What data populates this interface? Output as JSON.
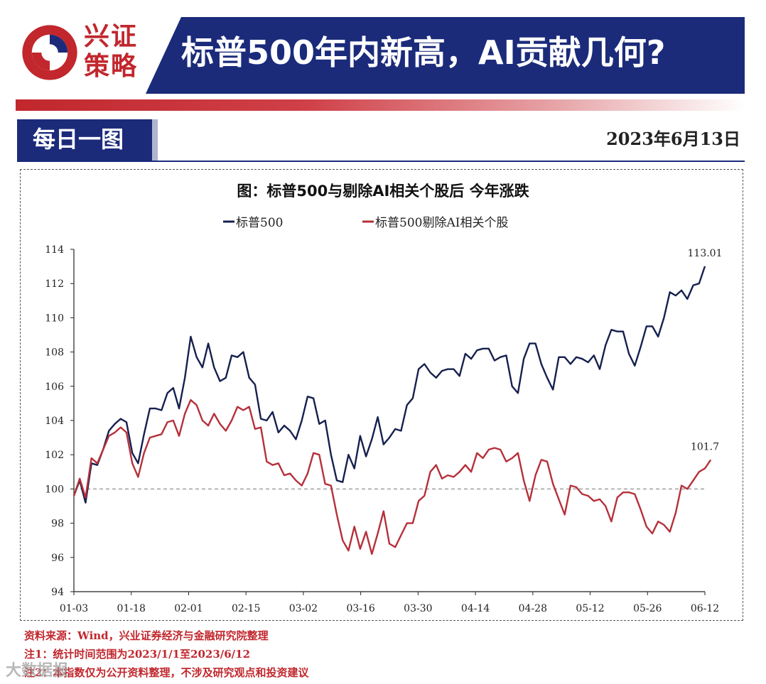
{
  "header": {
    "brand": "兴证策略",
    "brand_line1": "兴证",
    "brand_line2": "策略",
    "title": "标普500年内新高，AI贡献几何?",
    "section": "每日一图",
    "date": "2023年6月13日"
  },
  "colors": {
    "brand_red": "#c1272d",
    "navy": "#1b2b7a",
    "series_sp500": "#16204f",
    "series_ex_ai": "#b5303a"
  },
  "footnotes": [
    "资料来源：Wind，兴业证券经济与金融研究院整理",
    "注1：统计时间范围为2023/1/1至2023/6/12",
    "注2：本指数仅为公开资料整理，不涉及研究观点和投资建议"
  ],
  "watermark": "大数据报",
  "chart_data": {
    "type": "line",
    "title": "图：标普500与剔除AI相关个股后 今年涨跌",
    "xlabel": "",
    "ylabel": "",
    "ylim": [
      94,
      114
    ],
    "yticks": [
      94,
      96,
      98,
      100,
      102,
      104,
      106,
      108,
      110,
      112,
      114
    ],
    "xtick_labels": [
      "01-03",
      "01-18",
      "02-01",
      "02-15",
      "03-02",
      "03-16",
      "03-30",
      "04-14",
      "04-28",
      "05-12",
      "05-26",
      "06-12"
    ],
    "reference_line": 100,
    "legend_position": "top",
    "grid": false,
    "series": [
      {
        "name": "标普500",
        "end_label": "113.01",
        "values": [
          99.6,
          100.5,
          99.2,
          101.5,
          101.4,
          102.3,
          103.4,
          103.8,
          104.1,
          103.9,
          102.1,
          101.5,
          103.2,
          104.7,
          104.7,
          104.6,
          105.6,
          105.9,
          104.7,
          106.5,
          108.9,
          107.7,
          107.1,
          108.5,
          107.1,
          106.3,
          106.5,
          107.8,
          107.7,
          108.0,
          106.5,
          106.1,
          104.1,
          104.0,
          104.5,
          103.3,
          103.7,
          103.4,
          102.9,
          104.0,
          105.4,
          105.3,
          103.8,
          104.0,
          102.0,
          100.5,
          100.4,
          102.0,
          101.2,
          103.1,
          101.9,
          102.9,
          104.2,
          102.6,
          103.0,
          103.5,
          103.4,
          104.9,
          105.3,
          107.0,
          107.3,
          106.8,
          106.5,
          106.9,
          107.0,
          107.0,
          106.6,
          107.9,
          107.6,
          108.1,
          108.2,
          108.2,
          107.5,
          107.7,
          107.8,
          106.0,
          105.6,
          107.6,
          108.5,
          108.5,
          107.3,
          106.5,
          105.8,
          107.7,
          107.7,
          107.3,
          107.7,
          107.6,
          107.4,
          107.8,
          107.0,
          108.4,
          109.3,
          109.2,
          109.2,
          107.9,
          107.2,
          108.3,
          109.5,
          109.5,
          108.9,
          110.0,
          111.5,
          111.3,
          111.6,
          111.1,
          111.9,
          112.0,
          113.01
        ]
      },
      {
        "name": "标普500剔除AI相关个股",
        "end_label": "101.7",
        "values": [
          99.6,
          100.6,
          99.5,
          101.8,
          101.5,
          102.3,
          103.1,
          103.3,
          103.6,
          103.3,
          101.5,
          100.7,
          102.1,
          103.0,
          103.1,
          103.2,
          103.9,
          104.0,
          103.1,
          104.4,
          105.2,
          104.9,
          104.0,
          103.7,
          104.4,
          103.8,
          103.4,
          104.0,
          104.8,
          104.6,
          104.8,
          103.5,
          103.6,
          101.6,
          101.4,
          101.5,
          100.8,
          100.9,
          100.5,
          100.2,
          100.9,
          102.1,
          102.0,
          100.3,
          100.2,
          98.5,
          97.0,
          96.4,
          97.8,
          96.5,
          97.5,
          96.2,
          97.4,
          98.7,
          96.8,
          96.6,
          97.3,
          98.0,
          98.0,
          99.3,
          99.6,
          101.0,
          101.4,
          100.6,
          100.8,
          100.7,
          101.0,
          101.4,
          101.0,
          102.1,
          101.8,
          102.3,
          102.4,
          102.3,
          101.6,
          101.8,
          102.1,
          100.5,
          99.3,
          100.8,
          101.7,
          101.6,
          100.3,
          99.4,
          98.5,
          100.2,
          100.1,
          99.7,
          99.6,
          99.3,
          99.4,
          99.0,
          98.1,
          99.5,
          99.8,
          99.8,
          99.7,
          98.8,
          97.8,
          97.4,
          98.1,
          97.9,
          97.5,
          98.6,
          100.2,
          100.0,
          100.5,
          101.0,
          101.2,
          101.7
        ]
      }
    ]
  }
}
